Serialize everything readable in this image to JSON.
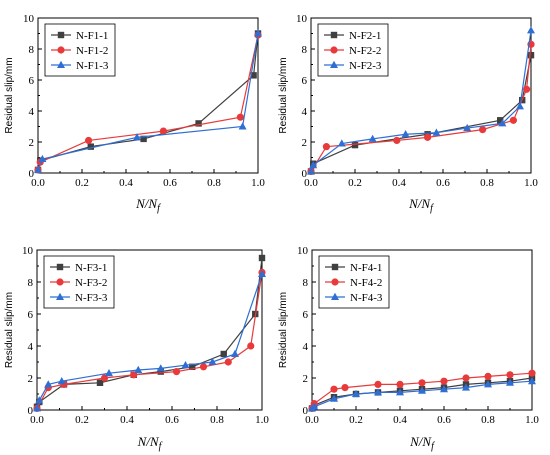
{
  "chart_data": [
    {
      "type": "line",
      "xlabel": "N/N",
      "xlabel_sub": "f",
      "ylabel": "Residual slip/mm",
      "xlim": [
        0,
        1
      ],
      "ylim": [
        0,
        10
      ],
      "xticks": [
        "0.0",
        "0.2",
        "0.4",
        "0.6",
        "0.8",
        "1.0"
      ],
      "yticks": [
        "0",
        "2",
        "4",
        "6",
        "8",
        "10"
      ],
      "legend_position": "top-left",
      "series": [
        {
          "name": "N-F1-1",
          "color": "#404040",
          "marker": "square",
          "x": [
            0.0,
            0.01,
            0.24,
            0.48,
            0.73,
            0.98,
            1.0
          ],
          "y": [
            0.2,
            0.8,
            1.7,
            2.2,
            3.2,
            6.3,
            9.0
          ]
        },
        {
          "name": "N-F1-2",
          "color": "#e83a3a",
          "marker": "circle",
          "x": [
            0.0,
            0.01,
            0.23,
            0.57,
            0.92,
            1.0
          ],
          "y": [
            0.2,
            0.7,
            2.1,
            2.7,
            3.6,
            8.9
          ]
        },
        {
          "name": "N-F1-3",
          "color": "#2f6fd4",
          "marker": "triangle",
          "x": [
            0.0,
            0.02,
            0.45,
            0.93,
            1.0
          ],
          "y": [
            0.2,
            0.9,
            2.3,
            3.0,
            9.0
          ]
        }
      ]
    },
    {
      "type": "line",
      "xlabel": "N/N",
      "xlabel_sub": "f",
      "ylabel": "Residual slip/mm",
      "xlim": [
        0,
        1
      ],
      "ylim": [
        0,
        10
      ],
      "xticks": [
        "0.0",
        "0.2",
        "0.4",
        "0.6",
        "0.8",
        "1.0"
      ],
      "yticks": [
        "0",
        "2",
        "4",
        "6",
        "8",
        "10"
      ],
      "legend_position": "top-left",
      "series": [
        {
          "name": "N-F2-1",
          "color": "#404040",
          "marker": "square",
          "x": [
            0.0,
            0.01,
            0.2,
            0.53,
            0.86,
            0.96,
            1.0
          ],
          "y": [
            0.1,
            0.6,
            1.8,
            2.5,
            3.4,
            4.7,
            7.6
          ]
        },
        {
          "name": "N-F2-2",
          "color": "#e83a3a",
          "marker": "circle",
          "x": [
            0.0,
            0.07,
            0.39,
            0.53,
            0.78,
            0.92,
            0.98,
            1.0
          ],
          "y": [
            0.1,
            1.7,
            2.1,
            2.3,
            2.8,
            3.4,
            5.4,
            8.3
          ]
        },
        {
          "name": "N-F2-3",
          "color": "#2f6fd4",
          "marker": "triangle",
          "x": [
            0.0,
            0.01,
            0.14,
            0.28,
            0.43,
            0.57,
            0.71,
            0.87,
            0.95,
            1.0
          ],
          "y": [
            0.1,
            0.5,
            1.9,
            2.2,
            2.5,
            2.6,
            2.9,
            3.2,
            4.3,
            9.2
          ]
        }
      ]
    },
    {
      "type": "line",
      "xlabel": "N/N",
      "xlabel_sub": "f",
      "ylabel": "Residual slip/mm",
      "xlim": [
        0,
        1
      ],
      "ylim": [
        0,
        10
      ],
      "xticks": [
        "0.0",
        "0.2",
        "0.4",
        "0.6",
        "0.8",
        "1.0"
      ],
      "yticks": [
        "0",
        "2",
        "4",
        "6",
        "8",
        "10"
      ],
      "legend_position": "top-left",
      "series": [
        {
          "name": "N-F3-1",
          "color": "#404040",
          "marker": "square",
          "x": [
            0.0,
            0.01,
            0.12,
            0.28,
            0.43,
            0.55,
            0.69,
            0.83,
            0.97,
            1.0
          ],
          "y": [
            0.2,
            0.5,
            1.6,
            1.7,
            2.2,
            2.4,
            2.7,
            3.5,
            6.0,
            9.5
          ]
        },
        {
          "name": "N-F3-2",
          "color": "#e83a3a",
          "marker": "circle",
          "x": [
            0.0,
            0.05,
            0.12,
            0.3,
            0.43,
            0.62,
            0.74,
            0.85,
            0.95,
            1.0
          ],
          "y": [
            0.1,
            1.4,
            1.6,
            2.0,
            2.2,
            2.4,
            2.7,
            3.0,
            4.0,
            8.6
          ]
        },
        {
          "name": "N-F3-3",
          "color": "#2f6fd4",
          "marker": "triangle",
          "x": [
            0.0,
            0.01,
            0.05,
            0.11,
            0.32,
            0.45,
            0.55,
            0.66,
            0.78,
            0.88,
            1.0
          ],
          "y": [
            0.1,
            0.6,
            1.6,
            1.8,
            2.3,
            2.5,
            2.6,
            2.8,
            3.0,
            3.5,
            8.5
          ]
        }
      ]
    },
    {
      "type": "line",
      "xlabel": "N/N",
      "xlabel_sub": "f",
      "ylabel": "Residual slip/mm",
      "xlim": [
        0,
        1
      ],
      "ylim": [
        0,
        10
      ],
      "xticks": [
        "0.0",
        "0.2",
        "0.4",
        "0.6",
        "0.8",
        "1.0"
      ],
      "yticks": [
        "0",
        "2",
        "4",
        "6",
        "8",
        "10"
      ],
      "legend_position": "top-left",
      "series": [
        {
          "name": "N-F4-1",
          "color": "#404040",
          "marker": "square",
          "x": [
            0.0,
            0.01,
            0.1,
            0.2,
            0.3,
            0.4,
            0.5,
            0.6,
            0.7,
            0.8,
            0.9,
            1.0
          ],
          "y": [
            0.1,
            0.3,
            0.8,
            1.0,
            1.1,
            1.2,
            1.3,
            1.4,
            1.6,
            1.7,
            1.8,
            2.0
          ]
        },
        {
          "name": "N-F4-2",
          "color": "#e83a3a",
          "marker": "circle",
          "x": [
            0.0,
            0.01,
            0.1,
            0.15,
            0.3,
            0.4,
            0.5,
            0.6,
            0.7,
            0.8,
            0.9,
            1.0
          ],
          "y": [
            0.1,
            0.4,
            1.3,
            1.4,
            1.6,
            1.6,
            1.7,
            1.8,
            2.0,
            2.1,
            2.2,
            2.3
          ]
        },
        {
          "name": "N-F4-3",
          "color": "#2f6fd4",
          "marker": "triangle",
          "x": [
            0.0,
            0.01,
            0.1,
            0.2,
            0.3,
            0.4,
            0.5,
            0.6,
            0.7,
            0.8,
            0.9,
            1.0
          ],
          "y": [
            0.1,
            0.2,
            0.7,
            1.0,
            1.1,
            1.1,
            1.2,
            1.3,
            1.4,
            1.6,
            1.7,
            1.8
          ]
        }
      ]
    }
  ]
}
